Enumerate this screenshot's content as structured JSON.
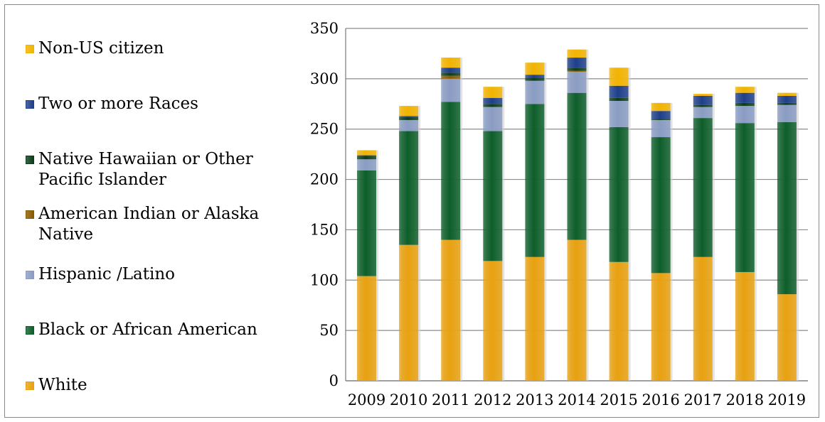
{
  "chart_data": {
    "type": "bar",
    "stacked": true,
    "title": "",
    "xlabel": "",
    "ylabel": "",
    "ylim": [
      0,
      350
    ],
    "yticks": [
      0,
      50,
      100,
      150,
      200,
      250,
      300,
      350
    ],
    "grid": true,
    "legend_position": "left",
    "categories": [
      "2009",
      "2010",
      "2011",
      "2012",
      "2013",
      "2014",
      "2015",
      "2016",
      "2017",
      "2018",
      "2019"
    ],
    "series": [
      {
        "name": "White",
        "color": "#e8a10f",
        "values": [
          104,
          135,
          140,
          119,
          123,
          140,
          118,
          107,
          123,
          108,
          86
        ]
      },
      {
        "name": "Black or African American",
        "color": "#0d5e2a",
        "values": [
          105,
          113,
          137,
          129,
          152,
          146,
          134,
          135,
          138,
          148,
          171
        ]
      },
      {
        "name": "Hispanic /Latino",
        "color": "#8a9cc3",
        "values": [
          11,
          11,
          23,
          24,
          23,
          21,
          26,
          17,
          11,
          17,
          17
        ]
      },
      {
        "name": "American Indian or Alaska Native",
        "color": "#8a5a00",
        "values": [
          0,
          0,
          3,
          0,
          0,
          1,
          0,
          0,
          0,
          0,
          0
        ]
      },
      {
        "name": "Native Hawaiian or Other Pacific Islander",
        "color": "#0b3d1a",
        "values": [
          3,
          3,
          3,
          3,
          3,
          3,
          3,
          1,
          2,
          3,
          2
        ]
      },
      {
        "name": "Two or more Races",
        "color": "#1f3f8a",
        "values": [
          1,
          1,
          5,
          6,
          3,
          10,
          12,
          8,
          9,
          10,
          7
        ]
      },
      {
        "name": "Non-US citizen",
        "color": "#f2b300",
        "values": [
          5,
          10,
          10,
          11,
          12,
          8,
          18,
          8,
          2,
          6,
          3
        ]
      }
    ],
    "legend_order": [
      "Non-US citizen",
      "Two or more Races",
      "Native Hawaiian or Other Pacific Islander",
      "American Indian or Alaska Native",
      "Hispanic /Latino",
      "Black or African American",
      "White"
    ]
  }
}
